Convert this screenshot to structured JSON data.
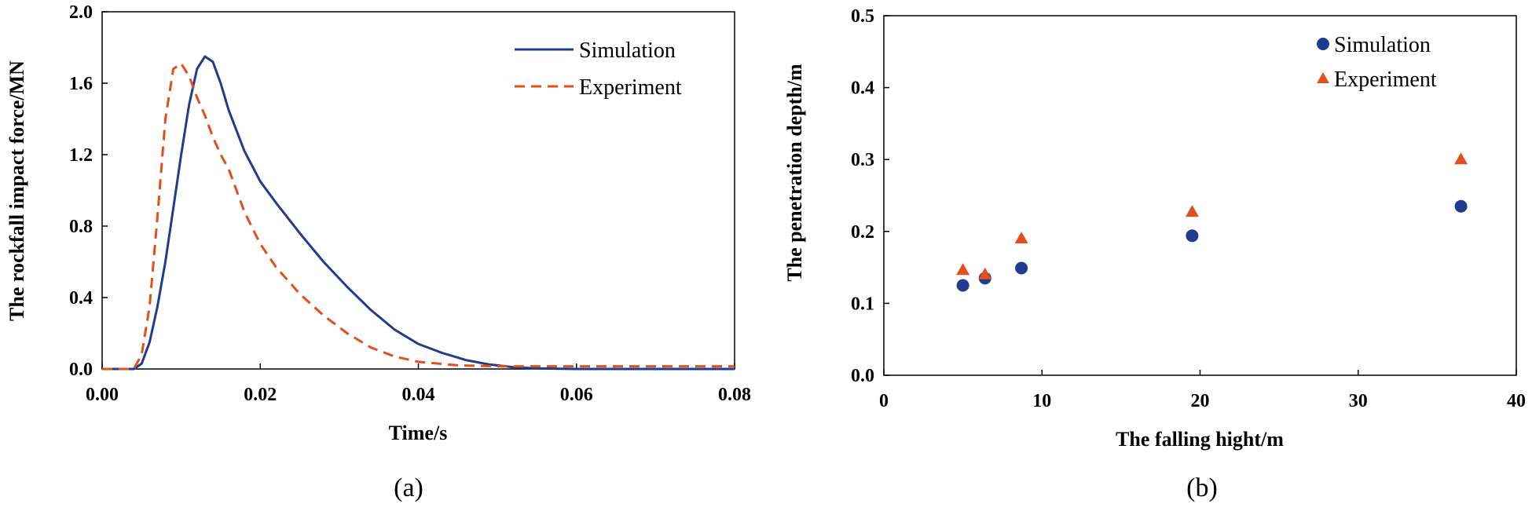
{
  "chart_data": [
    {
      "type": "line",
      "panel_label": "(a)",
      "xlabel": "Time/s",
      "ylabel": "The rockfall impact force/MN",
      "xlim": [
        0,
        0.08
      ],
      "ylim": [
        0,
        2.0
      ],
      "x_ticks": [
        "0.00",
        "0.02",
        "0.04",
        "0.06",
        "0.08"
      ],
      "y_ticks": [
        "0.0",
        "0.4",
        "0.8",
        "1.2",
        "1.6",
        "2.0"
      ],
      "grid": false,
      "legend_position": "top-right",
      "series": [
        {
          "name": "Simulation",
          "color": "#1f3c8f",
          "style": "solid",
          "points": [
            [
              0.0,
              0.0
            ],
            [
              0.004,
              0.0
            ],
            [
              0.005,
              0.03
            ],
            [
              0.006,
              0.15
            ],
            [
              0.007,
              0.35
            ],
            [
              0.008,
              0.6
            ],
            [
              0.009,
              0.9
            ],
            [
              0.01,
              1.2
            ],
            [
              0.011,
              1.48
            ],
            [
              0.012,
              1.68
            ],
            [
              0.013,
              1.75
            ],
            [
              0.014,
              1.72
            ],
            [
              0.015,
              1.6
            ],
            [
              0.016,
              1.45
            ],
            [
              0.018,
              1.22
            ],
            [
              0.02,
              1.05
            ],
            [
              0.022,
              0.93
            ],
            [
              0.025,
              0.76
            ],
            [
              0.028,
              0.6
            ],
            [
              0.031,
              0.46
            ],
            [
              0.034,
              0.33
            ],
            [
              0.037,
              0.22
            ],
            [
              0.04,
              0.14
            ],
            [
              0.043,
              0.09
            ],
            [
              0.046,
              0.05
            ],
            [
              0.049,
              0.025
            ],
            [
              0.052,
              0.01
            ],
            [
              0.055,
              0.003
            ],
            [
              0.06,
              0.0
            ],
            [
              0.08,
              0.0
            ]
          ]
        },
        {
          "name": "Experiment",
          "color": "#e0501c",
          "style": "dashed",
          "points": [
            [
              0.0,
              0.0
            ],
            [
              0.004,
              0.0
            ],
            [
              0.005,
              0.08
            ],
            [
              0.006,
              0.35
            ],
            [
              0.007,
              0.85
            ],
            [
              0.008,
              1.4
            ],
            [
              0.009,
              1.68
            ],
            [
              0.01,
              1.71
            ],
            [
              0.011,
              1.64
            ],
            [
              0.012,
              1.52
            ],
            [
              0.013,
              1.42
            ],
            [
              0.014,
              1.3
            ],
            [
              0.015,
              1.2
            ],
            [
              0.016,
              1.12
            ],
            [
              0.018,
              0.88
            ],
            [
              0.02,
              0.7
            ],
            [
              0.022,
              0.57
            ],
            [
              0.025,
              0.42
            ],
            [
              0.028,
              0.3
            ],
            [
              0.031,
              0.2
            ],
            [
              0.034,
              0.12
            ],
            [
              0.037,
              0.07
            ],
            [
              0.04,
              0.04
            ],
            [
              0.045,
              0.02
            ],
            [
              0.05,
              0.015
            ],
            [
              0.055,
              0.015
            ],
            [
              0.06,
              0.015
            ],
            [
              0.08,
              0.015
            ]
          ]
        }
      ]
    },
    {
      "type": "scatter",
      "panel_label": "(b)",
      "xlabel": "The falling hight/m",
      "ylabel": "The penetration depth/m",
      "xlim": [
        0,
        40
      ],
      "ylim": [
        0,
        0.5
      ],
      "x_ticks": [
        "0",
        "10",
        "20",
        "30",
        "40"
      ],
      "y_ticks": [
        "0.0",
        "0.1",
        "0.2",
        "0.3",
        "0.4",
        "0.5"
      ],
      "grid": false,
      "legend_position": "top-right",
      "series": [
        {
          "name": "Simulation",
          "color": "#1f3c8f",
          "marker": "circle",
          "points": [
            [
              5.0,
              0.125
            ],
            [
              6.4,
              0.135
            ],
            [
              8.7,
              0.149
            ],
            [
              19.5,
              0.194
            ],
            [
              36.5,
              0.235
            ]
          ]
        },
        {
          "name": "Experiment",
          "color": "#e0501c",
          "marker": "triangle",
          "points": [
            [
              5.0,
              0.146
            ],
            [
              6.4,
              0.14
            ],
            [
              8.7,
              0.19
            ],
            [
              19.5,
              0.227
            ],
            [
              36.5,
              0.3
            ]
          ]
        }
      ]
    }
  ]
}
